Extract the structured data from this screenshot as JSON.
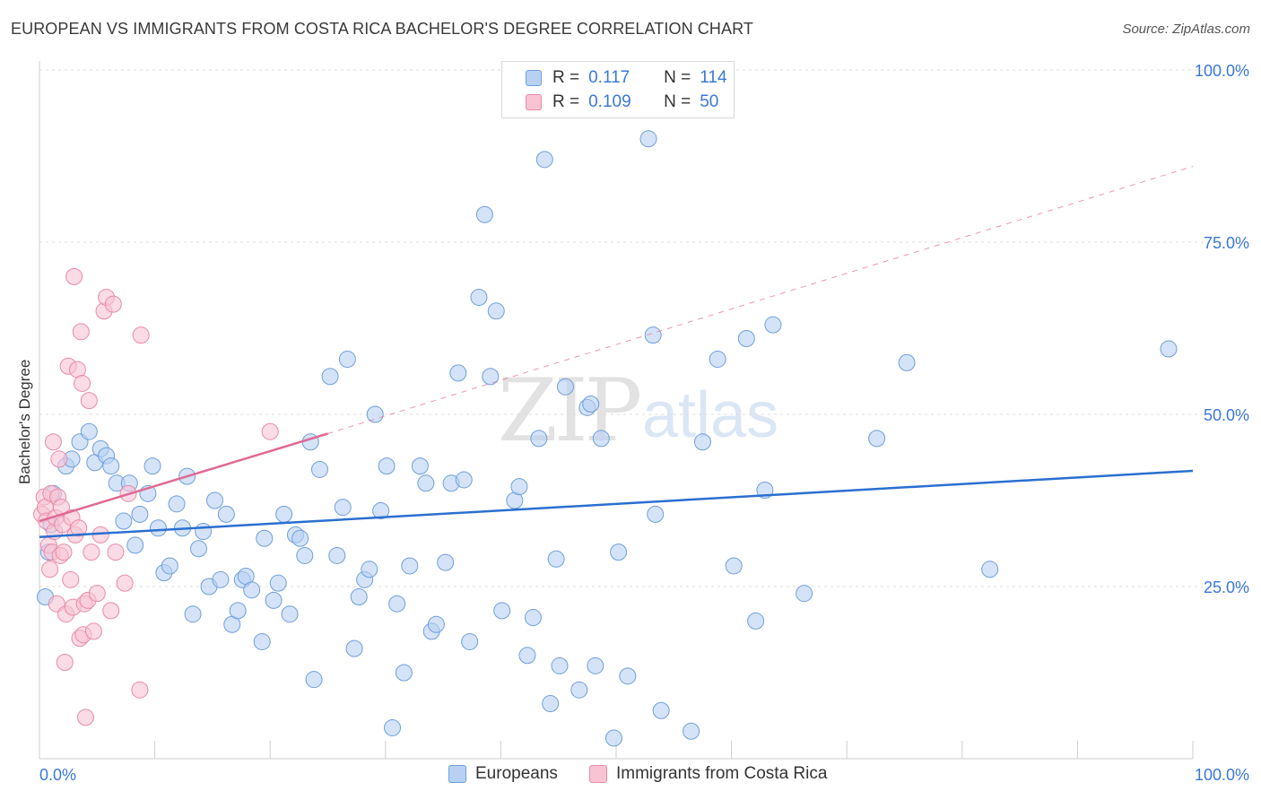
{
  "title": "EUROPEAN VS IMMIGRANTS FROM COSTA RICA BACHELOR'S DEGREE CORRELATION CHART",
  "source": "Source: ZipAtlas.com",
  "watermark": {
    "zip": "ZIP",
    "atlas": "atlas"
  },
  "legend": {
    "r_label": "R =",
    "n_label": "N =",
    "rows": [
      {
        "r": "0.117",
        "n": "114",
        "color": "#a9c8f0",
        "border": "#6f9fdc"
      },
      {
        "r": "0.109",
        "n": "50",
        "color": "#f8bfd0",
        "border": "#e98aa8"
      }
    ]
  },
  "bottom_legend": [
    "Europeans",
    "Immigrants from Costa Rica"
  ],
  "chart_data": {
    "type": "scatter",
    "title": "EUROPEAN VS IMMIGRANTS FROM COSTA RICA BACHELOR'S DEGREE CORRELATION CHART",
    "xlabel": "",
    "ylabel": "Bachelor's Degree",
    "xlim": [
      0,
      100
    ],
    "ylim": [
      0,
      100
    ],
    "x_tick_labels": [
      "0.0%",
      "100.0%"
    ],
    "y_tick_labels": [
      "25.0%",
      "50.0%",
      "75.0%",
      "100.0%"
    ],
    "y_ticks": [
      25,
      50,
      75,
      100
    ],
    "grid": true,
    "legend_position": "top-center",
    "colors": {
      "europeans": "#6f9fdc",
      "europeans_fill": "#b8d1f2",
      "costa_rica": "#e98aa8",
      "costa_rica_fill": "#f8c3d3",
      "blue_line": "#2a6fd0",
      "pink_line": "#e06a95",
      "tick_text": "#3b78d8"
    },
    "series": [
      {
        "name": "Europeans",
        "points": [
          [
            0.5,
            23.5
          ],
          [
            0.8,
            30
          ],
          [
            1.0,
            34
          ],
          [
            1.2,
            38.5
          ],
          [
            2.3,
            42.5
          ],
          [
            2.8,
            43.5
          ],
          [
            3.5,
            46
          ],
          [
            4.3,
            47.5
          ],
          [
            4.8,
            43
          ],
          [
            5.3,
            45
          ],
          [
            5.8,
            44
          ],
          [
            6.2,
            42.5
          ],
          [
            6.7,
            40
          ],
          [
            7.3,
            34.5
          ],
          [
            7.8,
            40
          ],
          [
            8.3,
            31
          ],
          [
            8.7,
            35.5
          ],
          [
            9.4,
            38.5
          ],
          [
            9.8,
            42.5
          ],
          [
            10.3,
            33.5
          ],
          [
            10.8,
            27
          ],
          [
            11.3,
            28
          ],
          [
            11.9,
            37
          ],
          [
            12.4,
            33.5
          ],
          [
            12.8,
            41
          ],
          [
            13.3,
            21
          ],
          [
            13.8,
            30.5
          ],
          [
            14.2,
            33
          ],
          [
            14.7,
            25
          ],
          [
            15.2,
            37.5
          ],
          [
            15.7,
            26
          ],
          [
            16.2,
            35.5
          ],
          [
            16.7,
            19.5
          ],
          [
            17.2,
            21.5
          ],
          [
            17.6,
            26
          ],
          [
            17.9,
            26.5
          ],
          [
            18.4,
            24.5
          ],
          [
            19.3,
            17
          ],
          [
            19.5,
            32
          ],
          [
            20.3,
            23
          ],
          [
            20.7,
            25.5
          ],
          [
            21.2,
            35.5
          ],
          [
            21.7,
            21
          ],
          [
            22.2,
            32.5
          ],
          [
            22.6,
            32
          ],
          [
            23.0,
            29.5
          ],
          [
            23.5,
            46
          ],
          [
            23.8,
            11.5
          ],
          [
            24.3,
            42
          ],
          [
            25.2,
            55.5
          ],
          [
            25.8,
            29.5
          ],
          [
            26.3,
            36.5
          ],
          [
            26.7,
            58
          ],
          [
            27.3,
            16
          ],
          [
            27.7,
            23.5
          ],
          [
            28.2,
            26
          ],
          [
            28.6,
            27.5
          ],
          [
            29.1,
            50
          ],
          [
            29.6,
            36
          ],
          [
            30.1,
            42.5
          ],
          [
            30.6,
            4.5
          ],
          [
            31.0,
            22.5
          ],
          [
            31.6,
            12.5
          ],
          [
            32.1,
            28
          ],
          [
            33.0,
            42.5
          ],
          [
            33.5,
            40
          ],
          [
            34.0,
            18.5
          ],
          [
            34.4,
            19.5
          ],
          [
            35.2,
            28.5
          ],
          [
            35.7,
            40
          ],
          [
            36.3,
            56
          ],
          [
            36.8,
            40.5
          ],
          [
            37.3,
            17
          ],
          [
            38.1,
            67
          ],
          [
            38.6,
            79
          ],
          [
            39.1,
            55.5
          ],
          [
            39.6,
            65
          ],
          [
            40.1,
            21.5
          ],
          [
            41.2,
            37.5
          ],
          [
            41.6,
            39.5
          ],
          [
            42.3,
            15
          ],
          [
            42.8,
            20.5
          ],
          [
            43.3,
            46.5
          ],
          [
            43.8,
            87
          ],
          [
            44.3,
            8
          ],
          [
            44.8,
            29
          ],
          [
            45.1,
            13.5
          ],
          [
            45.6,
            54
          ],
          [
            46.8,
            10
          ],
          [
            47.5,
            51
          ],
          [
            47.8,
            51.5
          ],
          [
            48.2,
            13.5
          ],
          [
            48.7,
            46.5
          ],
          [
            49.8,
            3
          ],
          [
            50.2,
            30
          ],
          [
            51.0,
            12
          ],
          [
            52.8,
            90
          ],
          [
            53.2,
            61.5
          ],
          [
            53.4,
            35.5
          ],
          [
            53.9,
            7
          ],
          [
            56.5,
            4
          ],
          [
            57.5,
            46
          ],
          [
            58.8,
            58
          ],
          [
            60.2,
            28
          ],
          [
            61.3,
            61
          ],
          [
            62.1,
            20
          ],
          [
            62.9,
            39
          ],
          [
            63.6,
            63
          ],
          [
            66.3,
            24
          ],
          [
            72.6,
            46.5
          ],
          [
            75.2,
            57.5
          ],
          [
            82.4,
            27.5
          ],
          [
            97.9,
            59.5
          ]
        ]
      },
      {
        "name": "Immigrants from Costa Rica",
        "points": [
          [
            0.2,
            35.5
          ],
          [
            0.4,
            38
          ],
          [
            0.5,
            36.5
          ],
          [
            0.6,
            34.5
          ],
          [
            0.8,
            31
          ],
          [
            0.9,
            27.5
          ],
          [
            1.0,
            38.5
          ],
          [
            1.1,
            30
          ],
          [
            1.2,
            46
          ],
          [
            1.3,
            33
          ],
          [
            1.4,
            35
          ],
          [
            1.5,
            22.5
          ],
          [
            1.6,
            38
          ],
          [
            1.7,
            43.5
          ],
          [
            1.8,
            29.5
          ],
          [
            1.9,
            36.5
          ],
          [
            2.0,
            34
          ],
          [
            2.1,
            30
          ],
          [
            2.2,
            14
          ],
          [
            2.3,
            21
          ],
          [
            2.5,
            57
          ],
          [
            2.7,
            26
          ],
          [
            2.8,
            35
          ],
          [
            2.9,
            22
          ],
          [
            3.0,
            70
          ],
          [
            3.1,
            32.5
          ],
          [
            3.3,
            56.5
          ],
          [
            3.4,
            33.5
          ],
          [
            3.5,
            17.5
          ],
          [
            3.6,
            62
          ],
          [
            3.7,
            54.5
          ],
          [
            3.8,
            18
          ],
          [
            3.9,
            22.5
          ],
          [
            4.0,
            6
          ],
          [
            4.2,
            23
          ],
          [
            4.3,
            52
          ],
          [
            4.5,
            30
          ],
          [
            4.7,
            18.5
          ],
          [
            5.0,
            24
          ],
          [
            5.3,
            32.5
          ],
          [
            5.6,
            65
          ],
          [
            5.8,
            67
          ],
          [
            6.2,
            21.5
          ],
          [
            6.4,
            66
          ],
          [
            6.6,
            30
          ],
          [
            7.4,
            25.5
          ],
          [
            7.7,
            38.5
          ],
          [
            8.7,
            10
          ],
          [
            8.8,
            61.5
          ],
          [
            20.0,
            47.5
          ]
        ]
      }
    ],
    "trendlines": [
      {
        "series": "Europeans",
        "x": [
          0,
          100
        ],
        "y": [
          32.2,
          41.8
        ],
        "style": "solid"
      },
      {
        "series": "Immigrants from Costa Rica",
        "x": [
          0,
          25
        ],
        "y": [
          34.5,
          47.2
        ],
        "style": "solid"
      },
      {
        "series": "Immigrants from Costa Rica",
        "x": [
          25,
          100
        ],
        "y": [
          47.2,
          86
        ],
        "style": "dashed"
      }
    ]
  }
}
